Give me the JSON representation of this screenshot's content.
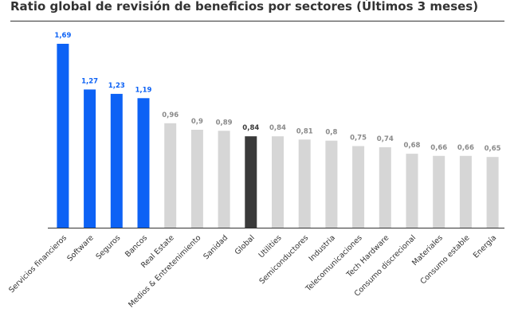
{
  "title": "Ratio global de revisión de beneficios por sectores (Últimos 3 meses)",
  "colors": {
    "highlight": "#0d62f5",
    "global": "#3a3a3a",
    "default": "#d6d6d6",
    "label_default": "#8a8a8a",
    "label_global": "#3a3a3a",
    "axis": "#333333"
  },
  "chart_data": {
    "type": "bar",
    "title": "Ratio global de revisión de beneficios por sectores (Últimos 3 meses)",
    "xlabel": "",
    "ylabel": "",
    "ylim": [
      0,
      1.69
    ],
    "grid": false,
    "legend": "none",
    "categories": [
      "Servicios financieros",
      "Software",
      "Seguros",
      "Bancos",
      "Real Estate",
      "Medios & Entretenimiento",
      "Sanidad",
      "Global",
      "Utilities",
      "Semiconductores",
      "Industria",
      "Telecomunicaciones",
      "Tech Hardware",
      "Consumo discrecional",
      "Materiales",
      "Consumo estable",
      "Energía"
    ],
    "values": [
      1.69,
      1.27,
      1.23,
      1.19,
      0.96,
      0.9,
      0.89,
      0.84,
      0.84,
      0.81,
      0.8,
      0.75,
      0.74,
      0.68,
      0.66,
      0.66,
      0.65
    ],
    "value_labels": [
      "1,69",
      "1,27",
      "1,23",
      "1,19",
      "0,96",
      "0,9",
      "0,89",
      "0,84",
      "0,84",
      "0,81",
      "0,8",
      "0,75",
      "0,74",
      "0,68",
      "0,66",
      "0,66",
      "0,65"
    ],
    "bar_styles": [
      "highlight",
      "highlight",
      "highlight",
      "highlight",
      "default",
      "default",
      "default",
      "global",
      "default",
      "default",
      "default",
      "default",
      "default",
      "default",
      "default",
      "default",
      "default"
    ]
  }
}
